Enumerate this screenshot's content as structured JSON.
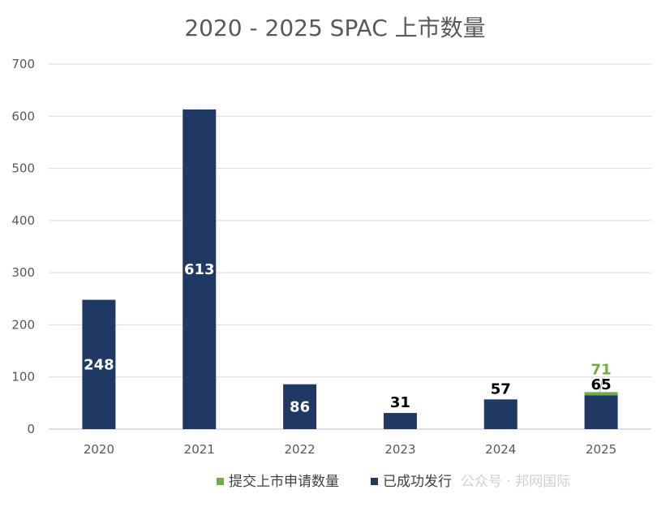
{
  "chart_data": {
    "type": "bar",
    "title": "2020 - 2025 SPAC 上市数量",
    "categories": [
      "2020",
      "2021",
      "2022",
      "2023",
      "2024",
      "2025"
    ],
    "ylim": [
      0,
      700
    ],
    "yticks": [
      0,
      100,
      200,
      300,
      400,
      500,
      600,
      700
    ],
    "grid": true,
    "series": [
      {
        "name": "提交上市申请数量",
        "color": "#70ad47",
        "values": [
          null,
          null,
          null,
          null,
          null,
          71
        ]
      },
      {
        "name": "已成功发行",
        "color": "#1f3864",
        "values": [
          248,
          613,
          86,
          31,
          57,
          65
        ]
      }
    ],
    "data_labels": [
      "248",
      "613",
      "86",
      "31",
      "57",
      "65"
    ],
    "extra_label": "71",
    "legend_position": "bottom"
  },
  "watermark": "公众号 · 邦网国际"
}
